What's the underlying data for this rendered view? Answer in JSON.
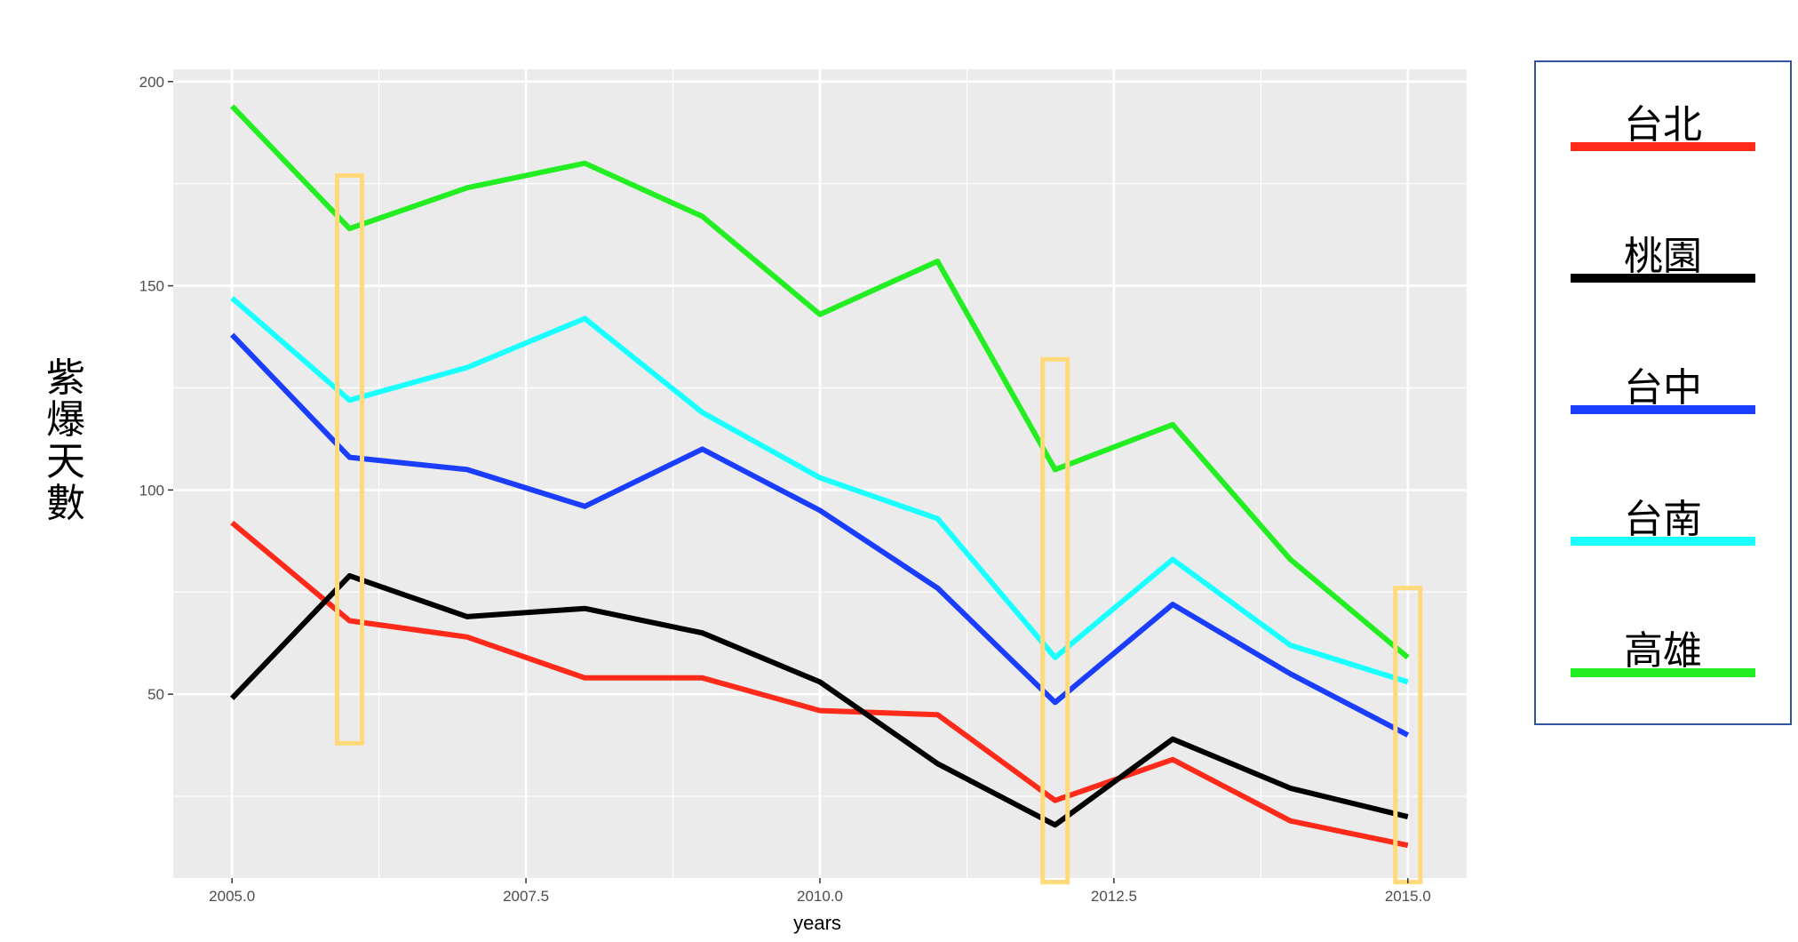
{
  "chart_data": {
    "type": "line",
    "xlabel": "years",
    "ylabel": "紫爆天數",
    "xlim": [
      2004.5,
      2015.5
    ],
    "ylim": [
      5,
      203
    ],
    "x_ticks": [
      {
        "value": 2005.0,
        "label": "2005.0"
      },
      {
        "value": 2007.5,
        "label": "2007.5"
      },
      {
        "value": 2010.0,
        "label": "2010.0"
      },
      {
        "value": 2012.5,
        "label": "2012.5"
      },
      {
        "value": 2015.0,
        "label": "2015.0"
      }
    ],
    "y_ticks": [
      {
        "value": 50,
        "label": "50"
      },
      {
        "value": 100,
        "label": "100"
      },
      {
        "value": 150,
        "label": "150"
      },
      {
        "value": 200,
        "label": "200"
      }
    ],
    "x": [
      2005,
      2006,
      2007,
      2008,
      2009,
      2010,
      2011,
      2012,
      2013,
      2014,
      2015
    ],
    "series": [
      {
        "name": "台北",
        "color": "#ff2a1a",
        "values": [
          92,
          68,
          64,
          54,
          54,
          46,
          45,
          24,
          34,
          19,
          13
        ]
      },
      {
        "name": "桃園",
        "color": "#000000",
        "values": [
          49,
          79,
          69,
          71,
          65,
          53,
          33,
          18,
          39,
          27,
          20
        ]
      },
      {
        "name": "台中",
        "color": "#1a3dff",
        "values": [
          138,
          108,
          105,
          96,
          110,
          95,
          76,
          48,
          72,
          55,
          40
        ]
      },
      {
        "name": "台南",
        "color": "#1affff",
        "values": [
          147,
          122,
          130,
          142,
          119,
          103,
          93,
          59,
          83,
          62,
          53
        ]
      },
      {
        "name": "高雄",
        "color": "#22ee22",
        "values": [
          194,
          164,
          174,
          180,
          167,
          143,
          156,
          105,
          116,
          83,
          59
        ]
      }
    ],
    "highlights": [
      {
        "x": 2006,
        "y_range": [
          38,
          177
        ],
        "color": "#ffd97a"
      },
      {
        "x": 2012,
        "y_range": [
          4,
          132
        ],
        "color": "#ffd97a"
      },
      {
        "x": 2015,
        "y_range": [
          4,
          76
        ],
        "color": "#ffd97a"
      }
    ],
    "grid": true,
    "legend_position": "right",
    "legend_border_color": "#3355a0",
    "panel_background": "#ebebeb",
    "grid_color": "#ffffff"
  }
}
